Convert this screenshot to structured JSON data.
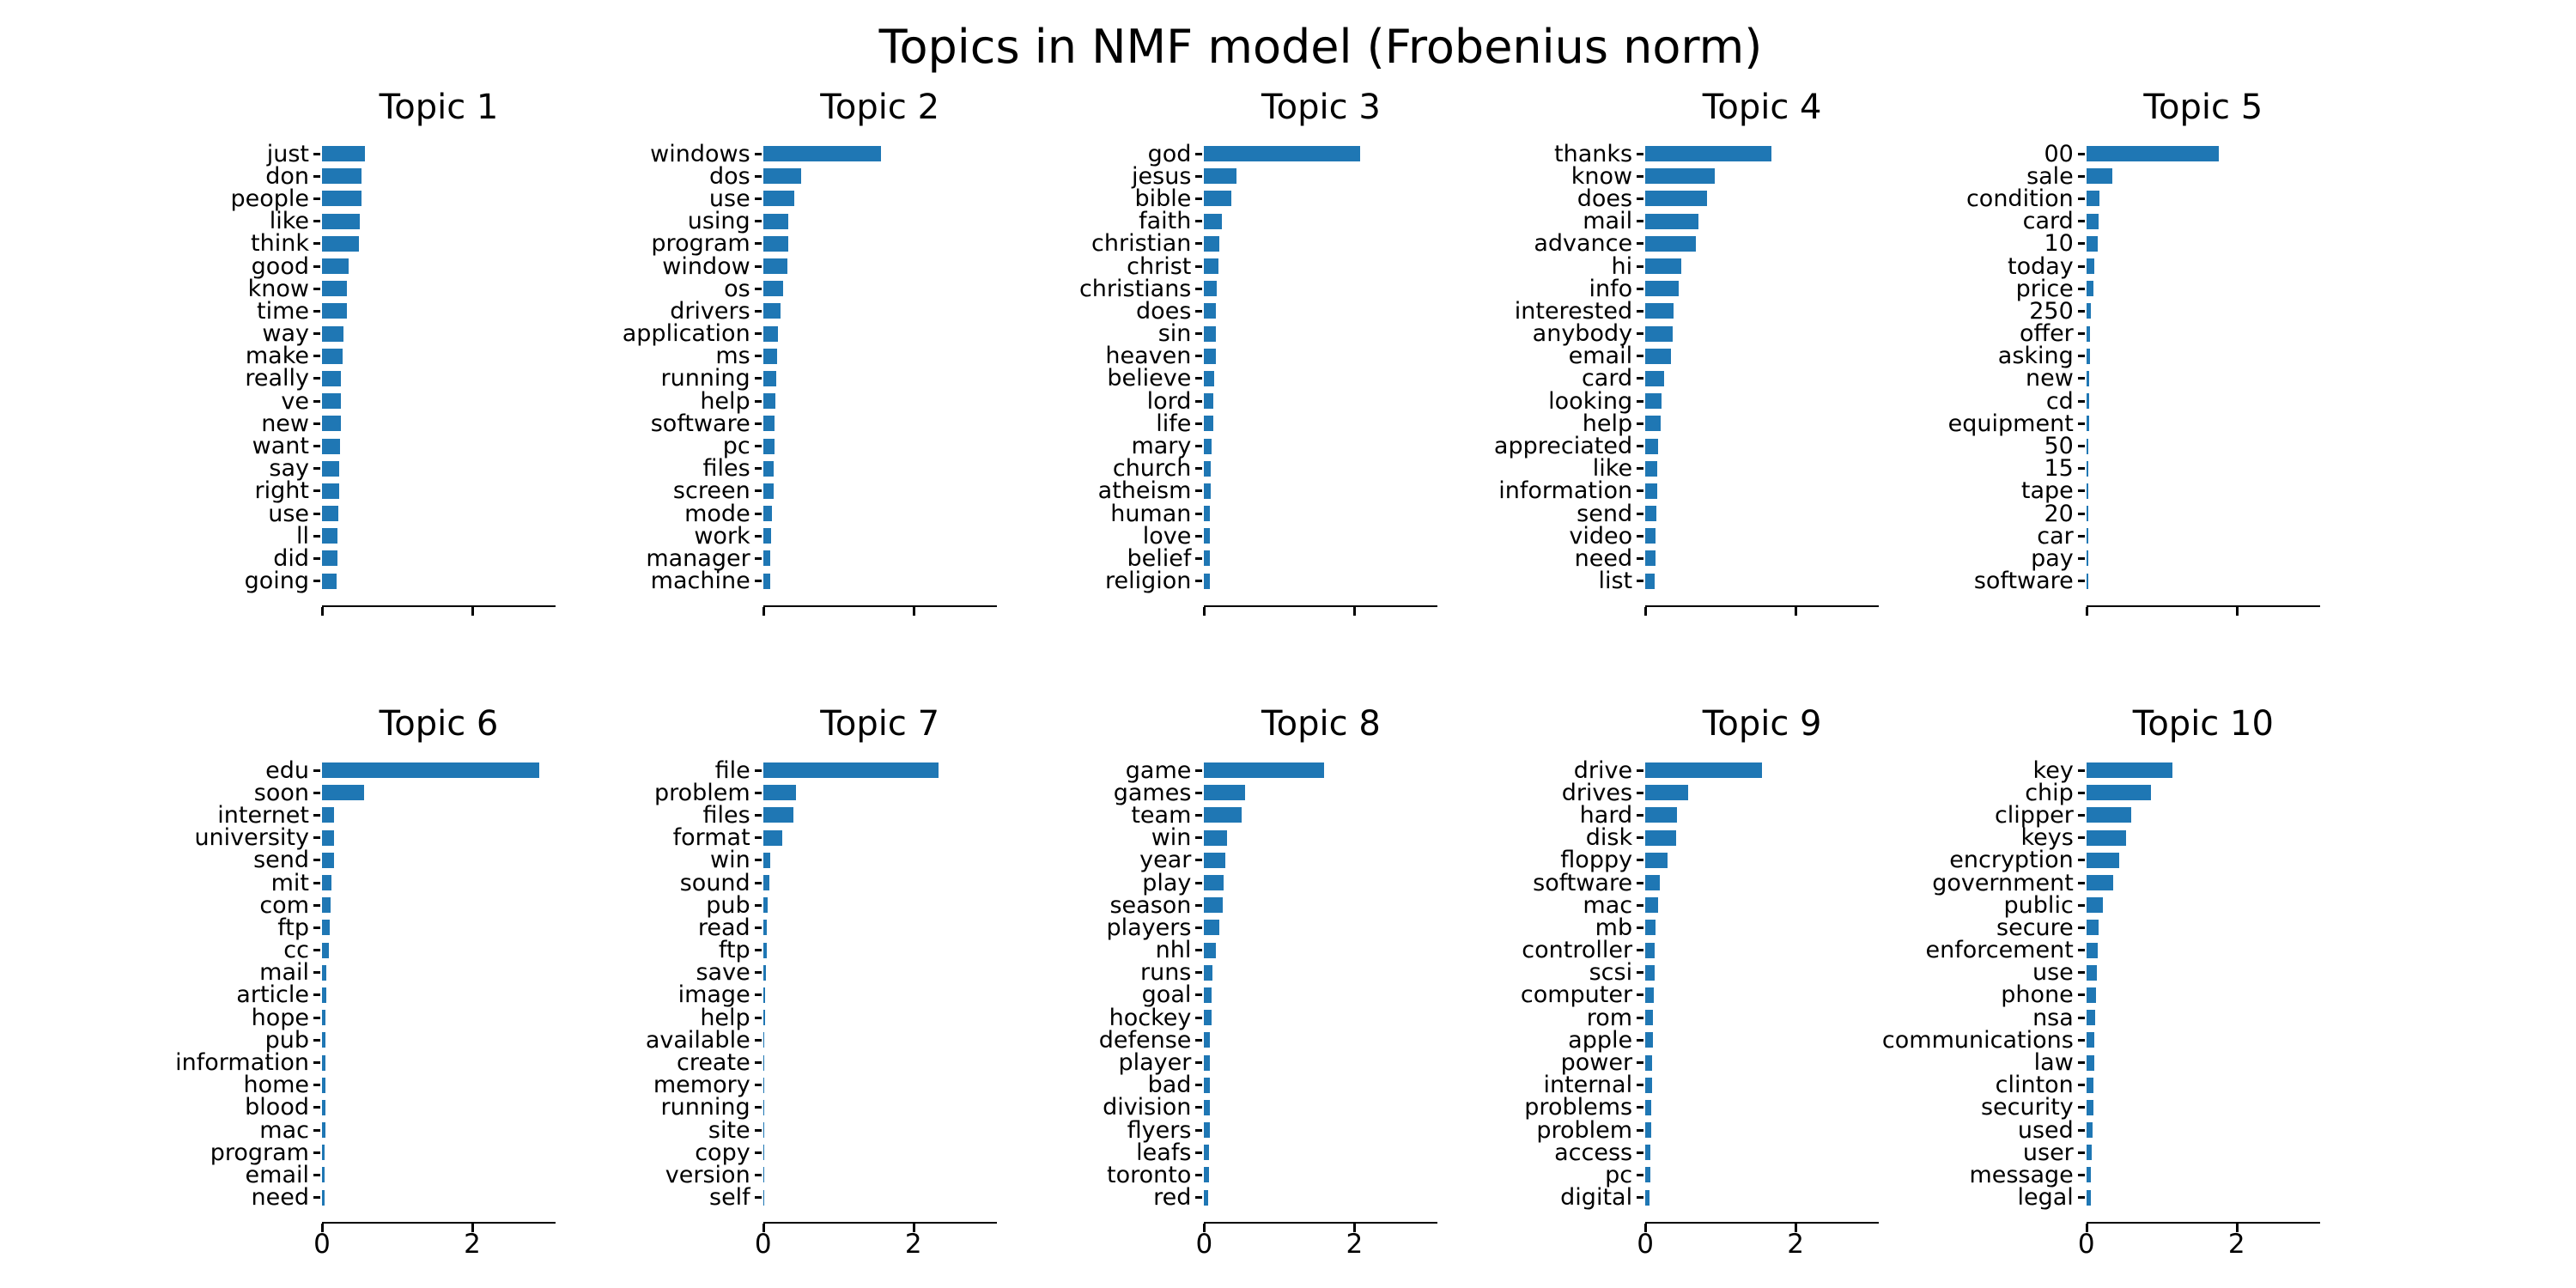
{
  "title": "Topics in NMF model (Frobenius norm)",
  "style": {
    "bar_color": "#1f77b4",
    "text_color": "#000000",
    "axis_color": "#000000",
    "background": "#ffffff"
  },
  "x_axis": {
    "tick_labels": [
      "0",
      "2"
    ],
    "tick_values": [
      0,
      2
    ],
    "xlim": [
      0,
      3.1
    ],
    "tick_labels_shown_on": "bottom-row-only"
  },
  "chart_data": [
    {
      "type": "bar",
      "orientation": "horizontal",
      "title": "Topic 1",
      "xlim": [
        0,
        3.1
      ],
      "xticks": [
        0,
        2
      ],
      "categories": [
        "just",
        "don",
        "people",
        "like",
        "think",
        "good",
        "know",
        "time",
        "way",
        "make",
        "really",
        "ve",
        "new",
        "want",
        "say",
        "right",
        "use",
        "ll",
        "did",
        "going"
      ],
      "values": [
        0.57,
        0.53,
        0.53,
        0.5,
        0.49,
        0.35,
        0.33,
        0.33,
        0.28,
        0.27,
        0.25,
        0.25,
        0.25,
        0.24,
        0.23,
        0.23,
        0.22,
        0.21,
        0.21,
        0.19
      ]
    },
    {
      "type": "bar",
      "orientation": "horizontal",
      "title": "Topic 2",
      "xlim": [
        0,
        3.1
      ],
      "xticks": [
        0,
        2
      ],
      "categories": [
        "windows",
        "dos",
        "use",
        "using",
        "program",
        "window",
        "os",
        "drivers",
        "application",
        "ms",
        "running",
        "help",
        "software",
        "pc",
        "files",
        "screen",
        "mode",
        "work",
        "manager",
        "machine"
      ],
      "values": [
        1.57,
        0.51,
        0.42,
        0.34,
        0.33,
        0.32,
        0.27,
        0.23,
        0.2,
        0.19,
        0.17,
        0.16,
        0.15,
        0.15,
        0.14,
        0.14,
        0.12,
        0.11,
        0.1,
        0.1
      ]
    },
    {
      "type": "bar",
      "orientation": "horizontal",
      "title": "Topic 3",
      "xlim": [
        0,
        3.1
      ],
      "xticks": [
        0,
        2
      ],
      "categories": [
        "god",
        "jesus",
        "bible",
        "faith",
        "christian",
        "christ",
        "christians",
        "does",
        "sin",
        "heaven",
        "believe",
        "lord",
        "life",
        "mary",
        "church",
        "atheism",
        "human",
        "love",
        "belief",
        "religion"
      ],
      "values": [
        2.08,
        0.43,
        0.36,
        0.24,
        0.2,
        0.19,
        0.17,
        0.16,
        0.15,
        0.15,
        0.13,
        0.12,
        0.12,
        0.1,
        0.09,
        0.09,
        0.08,
        0.08,
        0.07,
        0.07
      ]
    },
    {
      "type": "bar",
      "orientation": "horizontal",
      "title": "Topic 4",
      "xlim": [
        0,
        3.1
      ],
      "xticks": [
        0,
        2
      ],
      "categories": [
        "thanks",
        "know",
        "does",
        "mail",
        "advance",
        "hi",
        "info",
        "interested",
        "anybody",
        "email",
        "card",
        "looking",
        "help",
        "appreciated",
        "like",
        "information",
        "send",
        "video",
        "need",
        "list"
      ],
      "values": [
        1.68,
        0.93,
        0.82,
        0.71,
        0.67,
        0.48,
        0.45,
        0.38,
        0.36,
        0.34,
        0.25,
        0.22,
        0.21,
        0.17,
        0.16,
        0.16,
        0.15,
        0.14,
        0.14,
        0.13
      ]
    },
    {
      "type": "bar",
      "orientation": "horizontal",
      "title": "Topic 5",
      "xlim": [
        0,
        3.1
      ],
      "xticks": [
        0,
        2
      ],
      "categories": [
        "00",
        "sale",
        "condition",
        "card",
        "10",
        "today",
        "price",
        "250",
        "offer",
        "asking",
        "new",
        "cd",
        "equipment",
        "50",
        "15",
        "tape",
        "20",
        "car",
        "pay",
        "software"
      ],
      "values": [
        1.76,
        0.35,
        0.17,
        0.16,
        0.15,
        0.1,
        0.09,
        0.06,
        0.05,
        0.05,
        0.04,
        0.04,
        0.04,
        0.03,
        0.03,
        0.03,
        0.03,
        0.02,
        0.02,
        0.02
      ]
    },
    {
      "type": "bar",
      "orientation": "horizontal",
      "title": "Topic 6",
      "xlim": [
        0,
        3.1
      ],
      "xticks": [
        0,
        2
      ],
      "categories": [
        "edu",
        "soon",
        "internet",
        "university",
        "send",
        "mit",
        "com",
        "ftp",
        "cc",
        "mail",
        "article",
        "hope",
        "pub",
        "information",
        "home",
        "blood",
        "mac",
        "program",
        "email",
        "need"
      ],
      "values": [
        2.89,
        0.56,
        0.16,
        0.16,
        0.16,
        0.13,
        0.11,
        0.1,
        0.09,
        0.06,
        0.06,
        0.05,
        0.05,
        0.05,
        0.04,
        0.04,
        0.04,
        0.03,
        0.03,
        0.03
      ]
    },
    {
      "type": "bar",
      "orientation": "horizontal",
      "title": "Topic 7",
      "xlim": [
        0,
        3.1
      ],
      "xticks": [
        0,
        2
      ],
      "categories": [
        "file",
        "problem",
        "files",
        "format",
        "win",
        "sound",
        "pub",
        "read",
        "ftp",
        "save",
        "image",
        "help",
        "available",
        "create",
        "memory",
        "running",
        "site",
        "copy",
        "version",
        "self"
      ],
      "values": [
        2.33,
        0.44,
        0.4,
        0.25,
        0.09,
        0.08,
        0.06,
        0.05,
        0.05,
        0.04,
        0.03,
        0.03,
        0.02,
        0.02,
        0.02,
        0.02,
        0.02,
        0.02,
        0.01,
        0.01
      ]
    },
    {
      "type": "bar",
      "orientation": "horizontal",
      "title": "Topic 8",
      "xlim": [
        0,
        3.1
      ],
      "xticks": [
        0,
        2
      ],
      "categories": [
        "game",
        "games",
        "team",
        "win",
        "year",
        "play",
        "season",
        "players",
        "nhl",
        "runs",
        "goal",
        "hockey",
        "defense",
        "player",
        "bad",
        "division",
        "flyers",
        "leafs",
        "toronto",
        "red"
      ],
      "values": [
        1.6,
        0.54,
        0.5,
        0.3,
        0.28,
        0.26,
        0.25,
        0.2,
        0.15,
        0.11,
        0.1,
        0.1,
        0.08,
        0.08,
        0.08,
        0.07,
        0.07,
        0.06,
        0.06,
        0.05
      ]
    },
    {
      "type": "bar",
      "orientation": "horizontal",
      "title": "Topic 9",
      "xlim": [
        0,
        3.1
      ],
      "xticks": [
        0,
        2
      ],
      "categories": [
        "drive",
        "drives",
        "hard",
        "disk",
        "floppy",
        "software",
        "mac",
        "mb",
        "controller",
        "scsi",
        "computer",
        "rom",
        "apple",
        "power",
        "internal",
        "problems",
        "problem",
        "access",
        "pc",
        "digital"
      ],
      "values": [
        1.55,
        0.57,
        0.42,
        0.41,
        0.3,
        0.19,
        0.17,
        0.14,
        0.13,
        0.12,
        0.11,
        0.1,
        0.1,
        0.09,
        0.09,
        0.08,
        0.08,
        0.07,
        0.07,
        0.06
      ]
    },
    {
      "type": "bar",
      "orientation": "horizontal",
      "title": "Topic 10",
      "xlim": [
        0,
        3.1
      ],
      "xticks": [
        0,
        2
      ],
      "categories": [
        "key",
        "chip",
        "clipper",
        "keys",
        "encryption",
        "government",
        "public",
        "secure",
        "enforcement",
        "use",
        "phone",
        "nsa",
        "communications",
        "law",
        "clinton",
        "security",
        "used",
        "user",
        "message",
        "legal"
      ],
      "values": [
        1.15,
        0.86,
        0.6,
        0.53,
        0.44,
        0.36,
        0.22,
        0.16,
        0.15,
        0.14,
        0.13,
        0.12,
        0.11,
        0.1,
        0.09,
        0.09,
        0.08,
        0.07,
        0.06,
        0.06
      ]
    }
  ]
}
